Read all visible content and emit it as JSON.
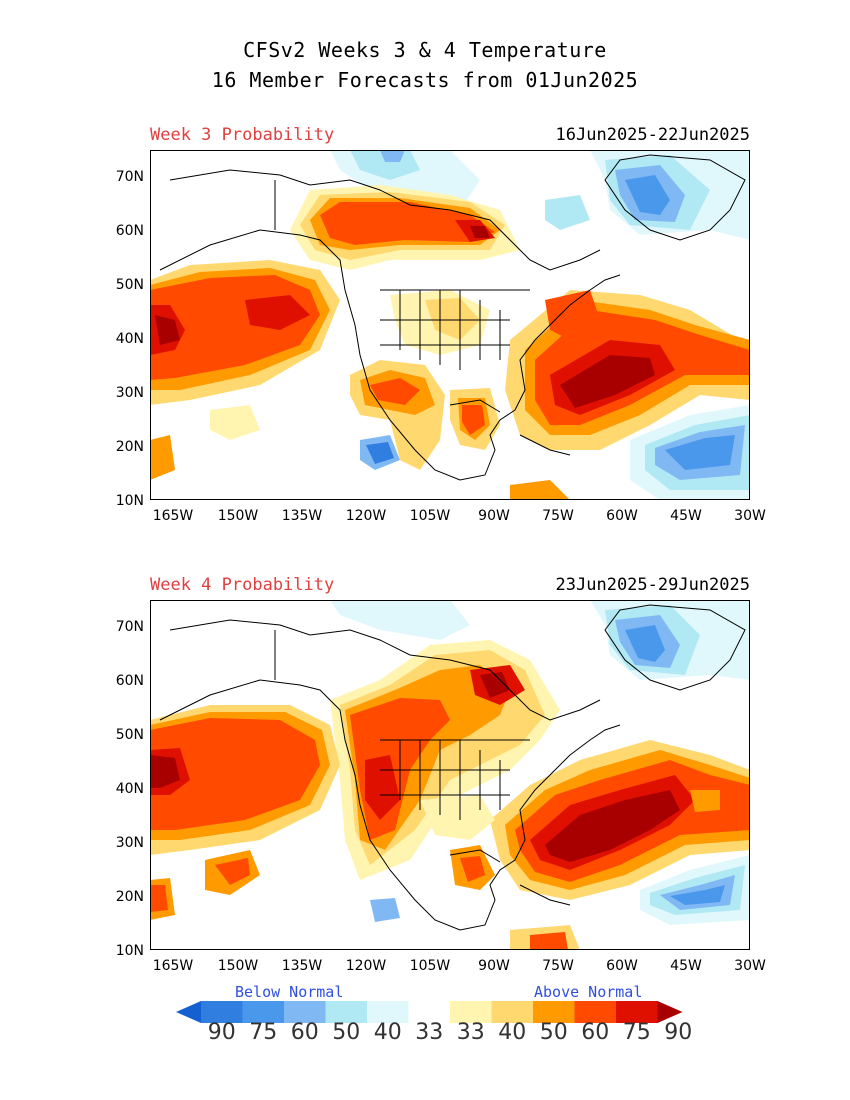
{
  "header": {
    "line1": "CFSv2 Weeks 3 & 4 Temperature",
    "line2": "16 Member Forecasts from 01Jun2025"
  },
  "panels": [
    {
      "label": "Week 3 Probability",
      "dates": "16Jun2025-22Jun2025"
    },
    {
      "label": "Week 4 Probability",
      "dates": "23Jun2025-29Jun2025"
    }
  ],
  "axes": {
    "lat_labels": [
      "70N",
      "60N",
      "50N",
      "40N",
      "30N",
      "20N",
      "10N"
    ],
    "lon_labels": [
      "165W",
      "150W",
      "135W",
      "120W",
      "105W",
      "90W",
      "75W",
      "60W",
      "45W",
      "30W"
    ]
  },
  "legend": {
    "below_label": "Below Normal",
    "above_label": "Above Normal",
    "values": [
      "90",
      "75",
      "60",
      "50",
      "40",
      "33",
      "33",
      "40",
      "50",
      "60",
      "75",
      "90"
    ],
    "colors": [
      "#1560d0",
      "#2f7ee0",
      "#4a98ec",
      "#80b8f4",
      "#b0e8f4",
      "#e0f8fc",
      "#ffffff",
      "#fff5b0",
      "#ffd870",
      "#ff9a00",
      "#ff4a00",
      "#e01000",
      "#a80000"
    ]
  }
}
